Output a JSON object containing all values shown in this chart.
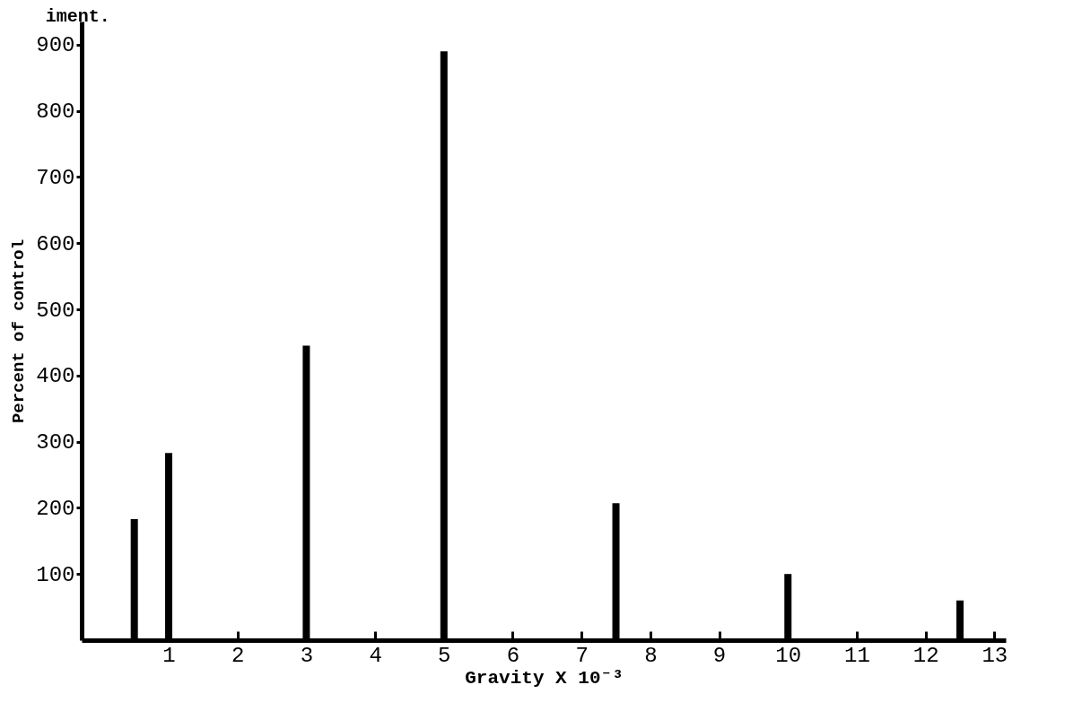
{
  "chart_data": {
    "type": "bar",
    "title": "iment.",
    "xlabel": "Gravity X 10⁻³",
    "ylabel": "Percent of control",
    "x": [
      0.5,
      1,
      3,
      5,
      7.5,
      10,
      12.5
    ],
    "values": [
      183,
      283,
      445,
      890,
      207,
      100,
      60
    ],
    "color": "#000000",
    "xlim": [
      -0.2,
      13.1
    ],
    "xticks": [
      1,
      2,
      3,
      4,
      5,
      6,
      7,
      8,
      9,
      10,
      11,
      12,
      13
    ],
    "ylim": [
      0,
      935
    ],
    "yticks": [
      100,
      200,
      300,
      400,
      500,
      600,
      700,
      800,
      900
    ],
    "grid": false
  }
}
